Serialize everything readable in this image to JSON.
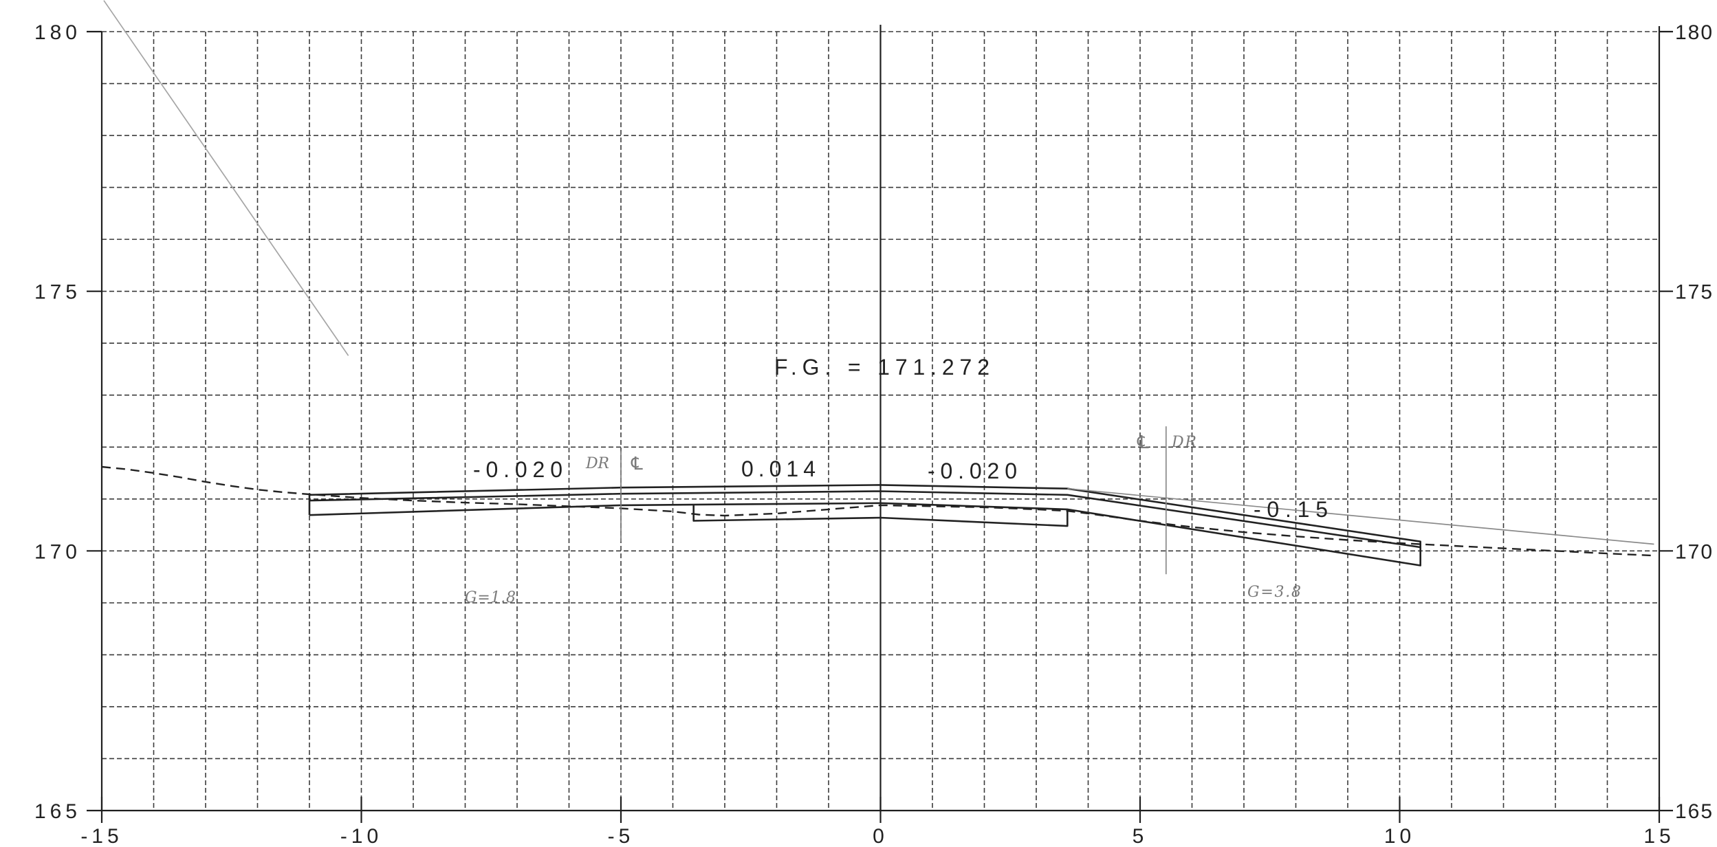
{
  "chart_data": {
    "type": "line",
    "xlim": [
      -15,
      15
    ],
    "ylim": [
      165,
      180
    ],
    "grid": true,
    "grid_style": "dashed",
    "x_ticks": [
      "-15",
      "-10",
      "-5",
      "0",
      "5",
      "10",
      "15"
    ],
    "y_ticks": [
      "180",
      "175",
      "170",
      "165"
    ],
    "annotations": [
      "F.G. = 171.272",
      "-0.020",
      "0.014",
      "-0.020",
      "-0.15",
      "DR",
      "℄",
      "℄",
      "DR",
      "G=1.8",
      "G=3.8"
    ],
    "series": [
      {
        "style": "dashed",
        "color": "#222222",
        "x": [
          -15,
          -14.5,
          -14,
          -13.5,
          -13,
          -12.5,
          -12,
          -11.5,
          -11,
          -10,
          -9,
          -8,
          -7,
          -6,
          -5,
          -4,
          -3.5,
          -3,
          -2,
          -1,
          0,
          1,
          2,
          3,
          3.6,
          4,
          5,
          6,
          7,
          8,
          9,
          10,
          11,
          12,
          13,
          14,
          14.9
        ],
        "y": [
          171.62,
          171.57,
          171.5,
          171.42,
          171.33,
          171.25,
          171.18,
          171.13,
          171.09,
          171.02,
          170.97,
          170.93,
          170.9,
          170.86,
          170.82,
          170.76,
          170.7,
          170.68,
          170.72,
          170.8,
          170.88,
          170.86,
          170.84,
          170.8,
          170.77,
          170.72,
          170.58,
          170.46,
          170.36,
          170.28,
          170.21,
          170.15,
          170.1,
          170.05,
          170.0,
          169.95,
          169.91
        ]
      },
      {
        "style": "solid",
        "color": "#222222",
        "x": [
          -11,
          -11,
          -5,
          0,
          3.6,
          10.4,
          10.4,
          3.6,
          0,
          -5,
          -11
        ],
        "y": [
          170.69,
          171.08,
          171.22,
          171.27,
          171.2,
          170.18,
          169.72,
          170.8,
          170.92,
          170.88,
          170.69
        ]
      },
      {
        "style": "solid",
        "color": "#222222",
        "x": [
          -11,
          -5,
          0,
          3.6,
          10.4
        ],
        "y": [
          170.97,
          171.1,
          171.15,
          171.08,
          170.07
        ]
      },
      {
        "style": "solid",
        "color": "#222222",
        "x": [
          -3.6,
          -3.6,
          0,
          3.6,
          3.6
        ],
        "y": [
          170.89,
          170.58,
          170.64,
          170.48,
          170.8
        ]
      },
      {
        "style": "solid",
        "color": "#8a8a8a",
        "x": [
          3.6,
          14.9
        ],
        "y": [
          171.2,
          170.13
        ]
      },
      {
        "style": "solid",
        "color": "#a5a5a5",
        "x": [
          -14.96,
          -10.25
        ],
        "y": [
          180.6,
          173.76
        ]
      },
      {
        "style": "solid",
        "color": "#7a7a7a",
        "x": [
          -5,
          -5
        ],
        "y": [
          171.93,
          170.18
        ]
      },
      {
        "style": "solid",
        "color": "#8a8a8a",
        "x": [
          5.5,
          5.5
        ],
        "y": [
          172.4,
          169.55
        ]
      }
    ]
  }
}
